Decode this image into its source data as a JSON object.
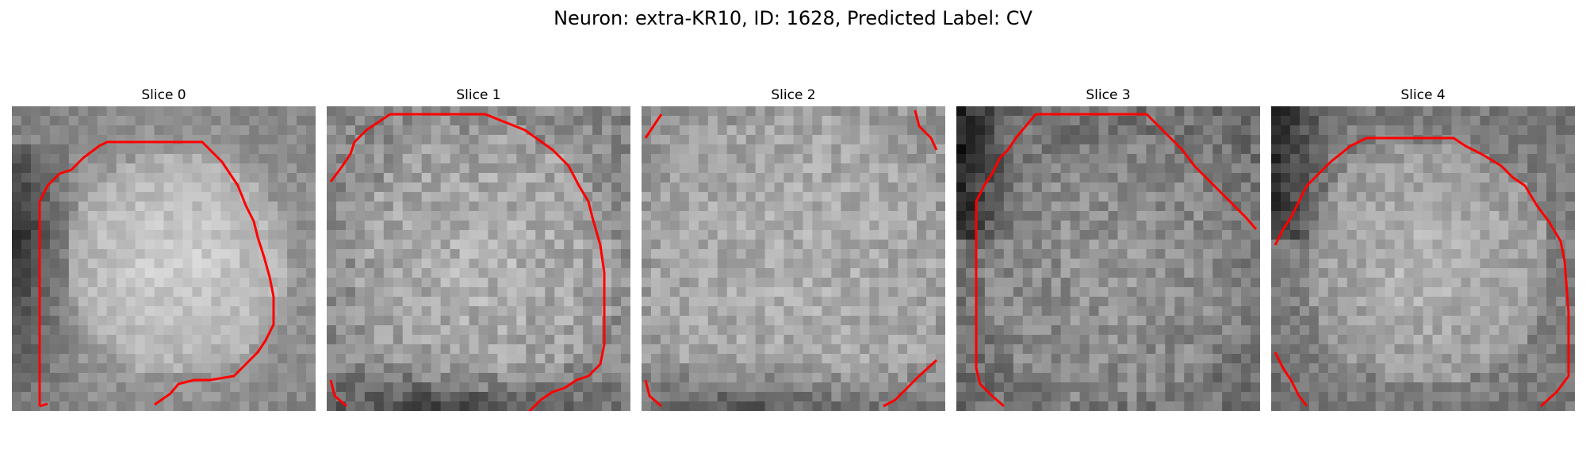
{
  "figure": {
    "title": "Neuron: extra-KR10, ID: 1628, Predicted Label: CV"
  },
  "panels": [
    {
      "title": "Slice 0"
    },
    {
      "title": "Slice 1"
    },
    {
      "title": "Slice 2"
    },
    {
      "title": "Slice 3"
    },
    {
      "title": "Slice 4"
    }
  ],
  "colors": {
    "contour": "#ff0000",
    "background": "#ffffff"
  }
}
